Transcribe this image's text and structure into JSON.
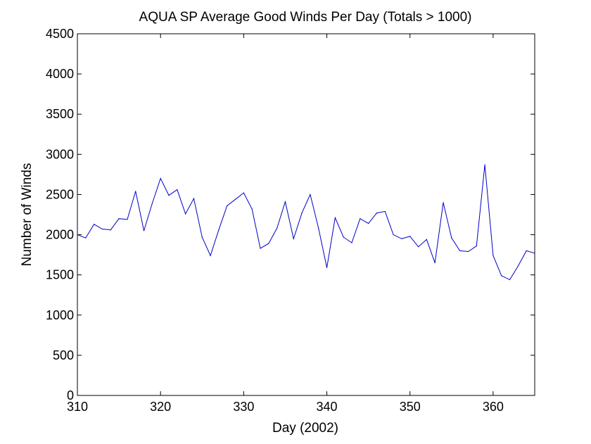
{
  "chart_data": {
    "type": "line",
    "title": "AQUA SP Average Good Winds Per Day (Totals > 1000)",
    "xlabel": "Day (2002)",
    "ylabel": "Number of Winds",
    "xlim": [
      310,
      365
    ],
    "ylim": [
      0,
      4500
    ],
    "xticks": [
      310,
      320,
      330,
      340,
      350,
      360
    ],
    "yticks": [
      0,
      500,
      1000,
      1500,
      2000,
      2500,
      3000,
      3500,
      4000,
      4500
    ],
    "grid": false,
    "legend": "none",
    "series": [
      {
        "color": "#0000cc",
        "x": [
          310,
          311,
          312,
          313,
          314,
          315,
          316,
          317,
          318,
          319,
          320,
          321,
          322,
          323,
          324,
          325,
          326,
          327,
          328,
          329,
          330,
          331,
          332,
          333,
          334,
          335,
          336,
          337,
          338,
          339,
          340,
          341,
          342,
          343,
          344,
          345,
          346,
          347,
          348,
          349,
          350,
          351,
          352,
          353,
          354,
          355,
          356,
          357,
          358,
          359,
          360,
          361,
          362,
          363,
          364,
          365
        ],
        "y": [
          2000,
          1960,
          2130,
          2070,
          2060,
          2200,
          2190,
          2540,
          2050,
          2390,
          2700,
          2490,
          2560,
          2260,
          2450,
          1970,
          1740,
          2060,
          2360,
          2440,
          2520,
          2320,
          1830,
          1890,
          2080,
          2410,
          1950,
          2270,
          2500,
          2080,
          1590,
          2210,
          1970,
          1900,
          2200,
          2140,
          2270,
          2290,
          2000,
          1950,
          1980,
          1850,
          1940,
          1650,
          2400,
          1960,
          1800,
          1790,
          1860,
          2870,
          1740,
          1490,
          1440,
          1610,
          1800,
          1770
        ]
      }
    ]
  }
}
